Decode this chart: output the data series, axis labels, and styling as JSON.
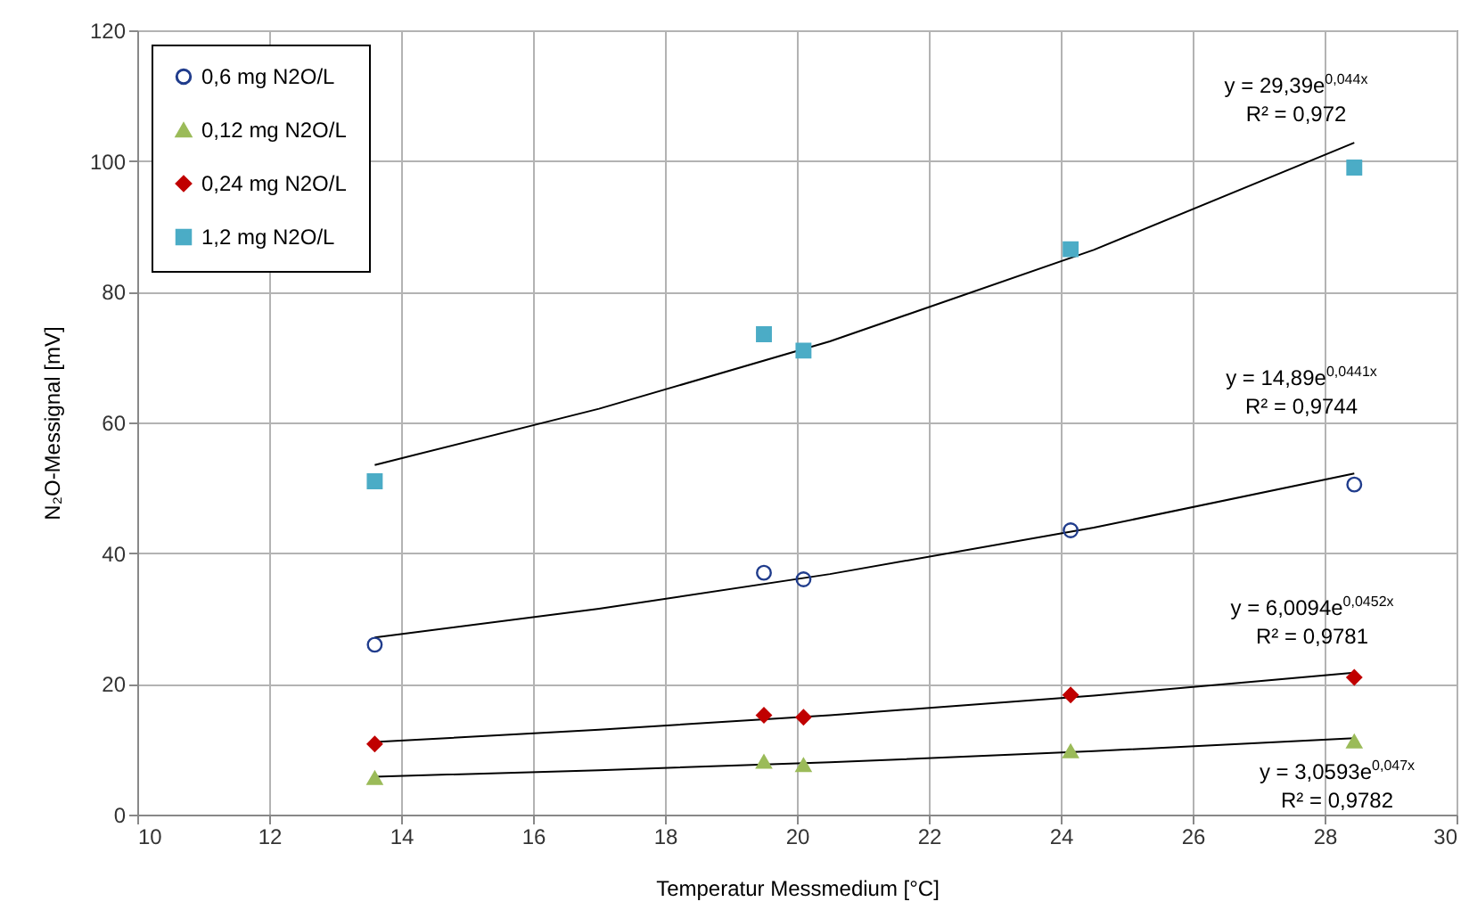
{
  "chart_data": {
    "type": "scatter",
    "xlabel": "Temperatur Messmedium [°C]",
    "ylabel": "N₂O-Messignal [mV]",
    "x": [
      13.6,
      19.5,
      20.1,
      24.15,
      28.45
    ],
    "xlim": [
      10,
      30
    ],
    "xticks": [
      10,
      12,
      14,
      16,
      18,
      20,
      22,
      24,
      26,
      28,
      30
    ],
    "ylim": [
      0,
      120
    ],
    "yticks": [
      0,
      20,
      40,
      60,
      80,
      100,
      120
    ],
    "grid": true,
    "legend": "top left",
    "series": [
      {
        "name": "0,6 mg N2O/L",
        "color": "#203c8c",
        "marker": "circle",
        "values": [
          26,
          37,
          36,
          43.5,
          50.5
        ]
      },
      {
        "name": "0,12 mg N2O/L",
        "color": "#9bbb59",
        "marker": "triangle",
        "values": [
          5.6,
          8.1,
          7.6,
          9.7,
          11.2
        ]
      },
      {
        "name": "0,24 mg N2O/L",
        "color": "#c00000",
        "marker": "diamond",
        "values": [
          10.8,
          15.2,
          14.9,
          18.3,
          21
        ]
      },
      {
        "name": "1,2 mg N2O/L",
        "color": "#4bacc6",
        "marker": "square",
        "values": [
          51,
          73.5,
          71,
          86.5,
          99
        ]
      },
      {
        "type": "line",
        "color": "#000000",
        "x": [
          13.6,
          17,
          20.5,
          24.5,
          28.45
        ],
        "values": [
          53.5,
          62.1,
          72.4,
          86.4,
          102.8
        ]
      },
      {
        "type": "line",
        "color": "#000000",
        "x": [
          13.6,
          17,
          20.5,
          24.5,
          28.45
        ],
        "values": [
          27.1,
          31.5,
          36.8,
          43.9,
          52.2
        ]
      },
      {
        "type": "line",
        "color": "#000000",
        "x": [
          13.6,
          17,
          20.5,
          24.5,
          28.45
        ],
        "values": [
          11.1,
          13,
          15.2,
          18.2,
          21.7
        ]
      },
      {
        "type": "line",
        "color": "#000000",
        "x": [
          13.6,
          17,
          20.5,
          24.5,
          28.45
        ],
        "values": [
          5.8,
          6.8,
          8,
          9.7,
          11.7
        ]
      }
    ],
    "annotations": [
      "y = 29,39e$^{0,044x}$",
      "R² = 0,972",
      "y = 14,89e$^{0,0441x}$",
      "R² = 0,9744",
      "y = 6,0094e$^{0,0452x}$",
      "R² = 0,9781",
      "y = 3,0593e$^{0,047x}$",
      "R² = 0,9782"
    ]
  }
}
